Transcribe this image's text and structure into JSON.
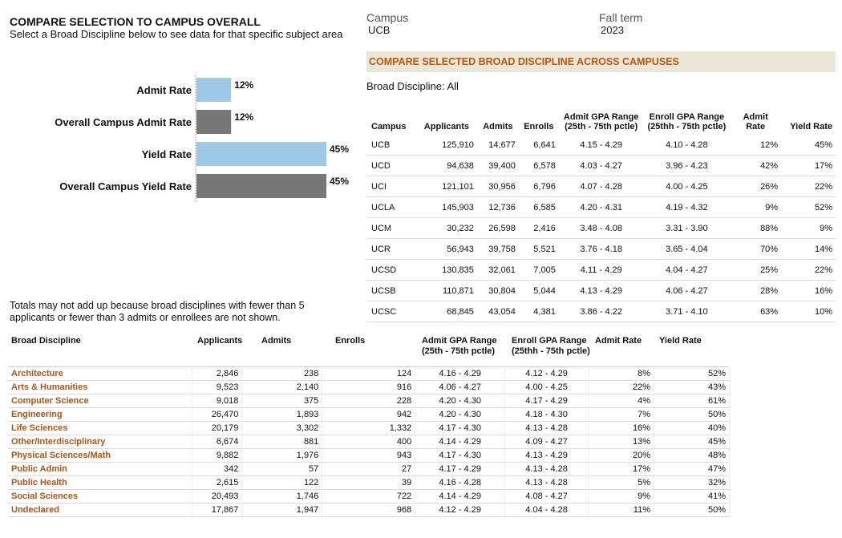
{
  "header": {
    "title": "COMPARE SELECTION TO CAMPUS OVERALL",
    "subtitle": "Select a Broad Discipline below to see data for that specific subject area"
  },
  "filters": {
    "campus_label": "Campus",
    "campus_value": "UCB",
    "term_label": "Fall term",
    "term_value": "2023"
  },
  "colors": {
    "selected": "#9ec9e6",
    "overall": "#777777",
    "accent": "#b05a14",
    "banner_bg": "#ece6d9"
  },
  "chart_data": {
    "type": "bar",
    "orientation": "horizontal",
    "categories": [
      "Admit Rate",
      "Overall Campus Admit Rate",
      "Yield Rate",
      "Overall Campus Yield Rate"
    ],
    "values": [
      12,
      12,
      45,
      45
    ],
    "value_labels": [
      "12%",
      "12%",
      "45%",
      "45%"
    ],
    "series_kind": [
      "selected",
      "overall",
      "selected",
      "overall"
    ],
    "xlim": [
      0,
      45
    ],
    "unit": "%"
  },
  "campus_section": {
    "banner": "COMPARE SELECTED BROAD DISCIPLINE ACROSS CAMPUSES",
    "broad_discipline": "Broad Discipline: All",
    "headers": [
      "Campus",
      "Applicants",
      "Admits",
      "Enrolls",
      "Admit GPA Range (25th - 75th pctle)",
      "Enroll GPA Range (25thh - 75th pctle)",
      "Admit Rate",
      "Yield Rate"
    ],
    "rows": [
      [
        "UCB",
        "125,910",
        "14,677",
        "6,641",
        "4.15 - 4.29",
        "4.10 - 4.28",
        "12%",
        "45%"
      ],
      [
        "UCD",
        "94,638",
        "39,400",
        "6,578",
        "4.03 - 4.27",
        "3.96 - 4.23",
        "42%",
        "17%"
      ],
      [
        "UCI",
        "121,101",
        "30,956",
        "6,796",
        "4.07 - 4.28",
        "4.00 - 4.25",
        "26%",
        "22%"
      ],
      [
        "UCLA",
        "145,903",
        "12,736",
        "6,585",
        "4.20 - 4.31",
        "4.19 - 4.32",
        "9%",
        "52%"
      ],
      [
        "UCM",
        "30,232",
        "26,598",
        "2,416",
        "3.48 - 4.08",
        "3.31 - 3.90",
        "88%",
        "9%"
      ],
      [
        "UCR",
        "56,943",
        "39,758",
        "5,521",
        "3.76 - 4.18",
        "3.65 - 4.04",
        "70%",
        "14%"
      ],
      [
        "UCSD",
        "130,835",
        "32,061",
        "7,005",
        "4.11 - 4.29",
        "4.04 - 4.27",
        "25%",
        "22%"
      ],
      [
        "UCSB",
        "110,871",
        "30,804",
        "5,044",
        "4.13 - 4.29",
        "4.06 - 4.27",
        "28%",
        "16%"
      ],
      [
        "UCSC",
        "68,845",
        "43,054",
        "4,381",
        "3.86 - 4.22",
        "3.71 - 4.10",
        "63%",
        "10%"
      ]
    ]
  },
  "note": "Totals may not add up because broad disciplines with fewer than 5 applicants or fewer than 3 admits or enrollees are not shown.",
  "discipline_section": {
    "headers": [
      "Broad Discipline",
      "Applicants",
      "Admits",
      "Enrolls",
      "Admit GPA Range\n(25th - 75th pctle)",
      "Enroll GPA Range\n(25thh - 75th pctle)",
      "Admit Rate",
      "Yield Rate"
    ],
    "rows": [
      [
        "Architecture",
        "2,846",
        "238",
        "124",
        "4.16 - 4.29",
        "4.12 - 4.29",
        "8%",
        "52%"
      ],
      [
        "Arts & Humanities",
        "9,523",
        "2,140",
        "916",
        "4.06 - 4.27",
        "4.00 - 4.25",
        "22%",
        "43%"
      ],
      [
        "Computer Science",
        "9,018",
        "375",
        "228",
        "4.20 - 4.30",
        "4.17 - 4.29",
        "4%",
        "61%"
      ],
      [
        "Engineering",
        "26,470",
        "1,893",
        "942",
        "4.20 - 4.30",
        "4.18 - 4.30",
        "7%",
        "50%"
      ],
      [
        "Life Sciences",
        "20,179",
        "3,302",
        "1,332",
        "4.17 - 4.30",
        "4.13 - 4.28",
        "16%",
        "40%"
      ],
      [
        "Other/Interdisciplinary",
        "6,674",
        "881",
        "400",
        "4.14 - 4.29",
        "4.09 - 4.27",
        "13%",
        "45%"
      ],
      [
        "Physical Sciences/Math",
        "9,882",
        "1,976",
        "943",
        "4.17 - 4.30",
        "4.13 - 4.29",
        "20%",
        "48%"
      ],
      [
        "Public Admin",
        "342",
        "57",
        "27",
        "4.17 - 4.29",
        "4.13 - 4.28",
        "17%",
        "47%"
      ],
      [
        "Public Health",
        "2,615",
        "122",
        "39",
        "4.16 - 4.28",
        "4.13 - 4.28",
        "5%",
        "32%"
      ],
      [
        "Social Sciences",
        "20,493",
        "1,746",
        "722",
        "4.14 - 4.29",
        "4.08 - 4.27",
        "9%",
        "41%"
      ],
      [
        "Undeclared",
        "17,867",
        "1,947",
        "968",
        "4.12 - 4.29",
        "4.04 - 4.28",
        "11%",
        "50%"
      ]
    ]
  }
}
